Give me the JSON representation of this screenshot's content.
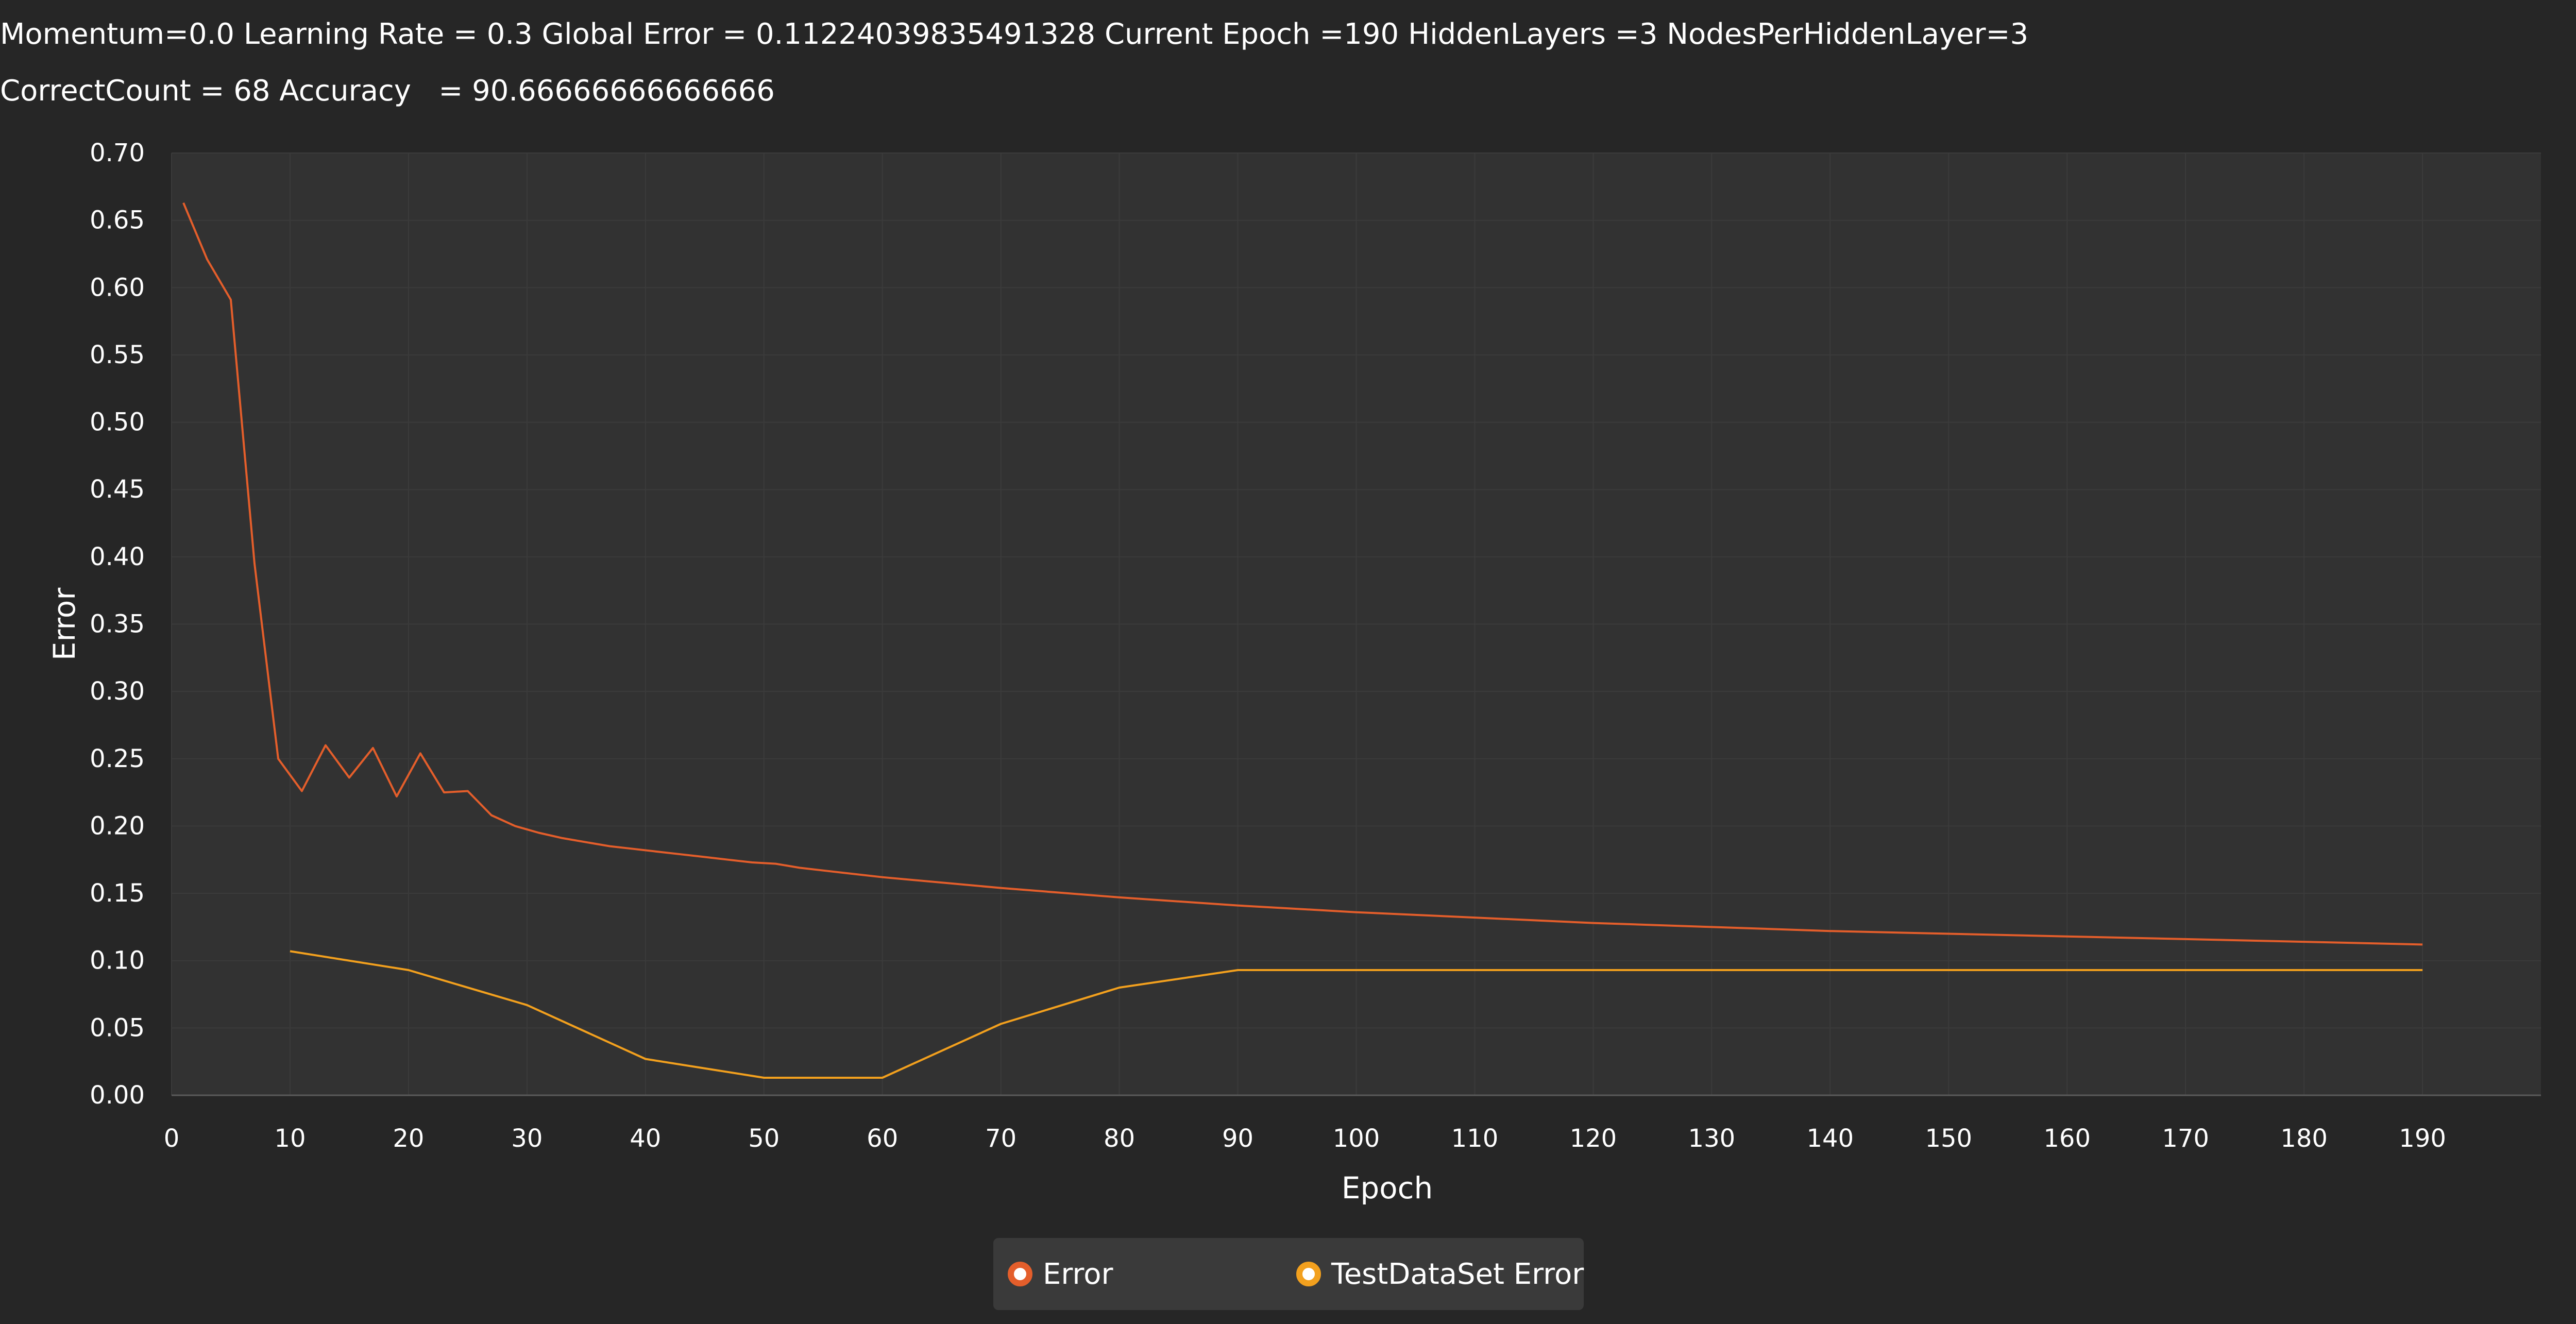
{
  "header": {
    "line1": "Momentum=0.0 Learning Rate = 0.3 Global Error = 0.11224039835491328 Current Epoch =190 HiddenLayers =3 NodesPerHiddenLayer=3",
    "line2": "CorrectCount = 68 Accuracy   = 90.66666666666666"
  },
  "chart_data": {
    "type": "line",
    "xlabel": "Epoch",
    "ylabel": "Error",
    "xlim": [
      0,
      200
    ],
    "ylim": [
      0,
      0.7
    ],
    "x_ticks": [
      0,
      10,
      20,
      30,
      40,
      50,
      60,
      70,
      80,
      90,
      100,
      110,
      120,
      130,
      140,
      150,
      160,
      170,
      180,
      190
    ],
    "y_ticks": [
      "0.00",
      "0.05",
      "0.10",
      "0.15",
      "0.20",
      "0.25",
      "0.30",
      "0.35",
      "0.40",
      "0.45",
      "0.50",
      "0.55",
      "0.60",
      "0.65",
      "0.70"
    ],
    "grid": true,
    "legend_position": "bottom-center",
    "series": [
      {
        "name": "Error",
        "color": "#e45e2b",
        "x": [
          1,
          3,
          5,
          7,
          9,
          11,
          13,
          15,
          17,
          19,
          21,
          23,
          25,
          27,
          29,
          31,
          33,
          35,
          37,
          39,
          41,
          43,
          45,
          47,
          49,
          51,
          53,
          55,
          60,
          70,
          80,
          90,
          100,
          110,
          120,
          130,
          140,
          150,
          160,
          170,
          180,
          190
        ],
        "y": [
          0.663,
          0.621,
          0.591,
          0.395,
          0.25,
          0.226,
          0.26,
          0.236,
          0.258,
          0.222,
          0.254,
          0.225,
          0.226,
          0.208,
          0.2,
          0.195,
          0.191,
          0.188,
          0.185,
          0.183,
          0.181,
          0.179,
          0.177,
          0.175,
          0.173,
          0.172,
          0.169,
          0.167,
          0.162,
          0.154,
          0.147,
          0.141,
          0.136,
          0.132,
          0.128,
          0.125,
          0.122,
          0.12,
          0.118,
          0.116,
          0.114,
          0.112
        ]
      },
      {
        "name": "TestDataSet Error",
        "color": "#f2a01e",
        "x": [
          10,
          20,
          30,
          40,
          50,
          60,
          70,
          80,
          90,
          100,
          110,
          120,
          130,
          140,
          150,
          160,
          170,
          180,
          190
        ],
        "y": [
          0.107,
          0.093,
          0.067,
          0.027,
          0.013,
          0.013,
          0.053,
          0.08,
          0.093,
          0.093,
          0.093,
          0.093,
          0.093,
          0.093,
          0.093,
          0.093,
          0.093,
          0.093,
          0.093
        ]
      }
    ]
  },
  "legend": {
    "items": [
      {
        "label": "Error",
        "color": "#e45e2b"
      },
      {
        "label": "TestDataSet Error",
        "color": "#f2a01e"
      }
    ]
  },
  "colors": {
    "background": "#262626",
    "plot_background": "#323232",
    "grid": "#3b3b3b",
    "text": "#ffffff"
  }
}
